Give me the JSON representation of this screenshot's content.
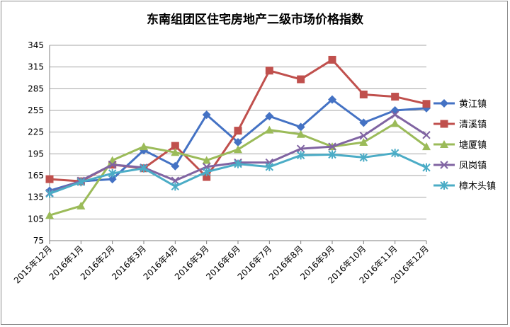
{
  "chart_data": {
    "type": "line",
    "title": "东南组团区住宅房地产二级市场价格指数",
    "xlabel": "",
    "ylabel": "",
    "categories": [
      "2015年12月",
      "2016年1月",
      "2016年2月",
      "2016年3月",
      "2016年4月",
      "2016年5月",
      "2016年6月",
      "2016年7月",
      "2016年8月",
      "2016年9月",
      "2016年10月",
      "2016年11月",
      "2016年12月"
    ],
    "ylim": [
      75,
      345
    ],
    "yticks": [
      75,
      105,
      135,
      165,
      195,
      225,
      255,
      285,
      315,
      345
    ],
    "grid": true,
    "legend_position": "right",
    "series": [
      {
        "name": "黄江镇",
        "color": "#4472c4",
        "marker": "diamond",
        "values": [
          144,
          157,
          160,
          200,
          178,
          249,
          211,
          247,
          232,
          270,
          238,
          255,
          258
        ]
      },
      {
        "name": "清溪镇",
        "color": "#c0504d",
        "marker": "square",
        "values": [
          160,
          157,
          180,
          175,
          206,
          163,
          227,
          310,
          298,
          325,
          277,
          274,
          264
        ]
      },
      {
        "name": "塘厦镇",
        "color": "#9bbb59",
        "marker": "triangle",
        "values": [
          110,
          123,
          186,
          205,
          197,
          186,
          201,
          228,
          222,
          205,
          211,
          237,
          205
        ]
      },
      {
        "name": "凤岗镇",
        "color": "#8064a2",
        "marker": "x",
        "values": [
          141,
          158,
          180,
          176,
          158,
          177,
          183,
          183,
          202,
          205,
          220,
          249,
          221
        ]
      },
      {
        "name": "樟木头镇",
        "color": "#4bacc6",
        "marker": "star",
        "values": [
          140,
          156,
          168,
          175,
          150,
          170,
          181,
          177,
          193,
          194,
          190,
          196,
          176
        ]
      }
    ]
  }
}
